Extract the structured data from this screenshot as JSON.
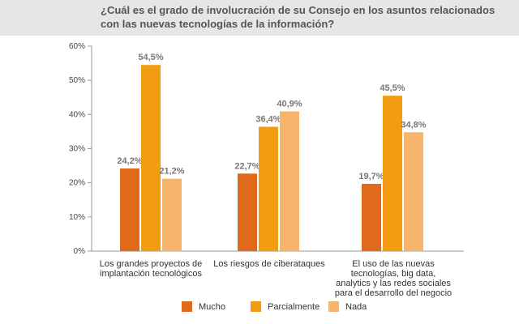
{
  "chart_data": {
    "type": "bar",
    "title": "¿Cuál es el grado de involucración de su Consejo en los asuntos relacionados con las nuevas tecnologías de la información?",
    "categories": [
      "Los grandes proyectos de implantación tecnológicos",
      "Los riesgos de ciberataques",
      "El uso de las nuevas tecnologías, big data, analytics y las redes sociales para el desarrollo del negocio"
    ],
    "series": [
      {
        "name": "Mucho",
        "values": [
          24.2,
          22.7,
          19.7
        ],
        "labels": [
          "24,2%",
          "22,7%",
          "19,7%"
        ],
        "color": "#e06a1b"
      },
      {
        "name": "Parcialmente",
        "values": [
          54.5,
          36.4,
          45.5
        ],
        "labels": [
          "54,5%",
          "36,4%",
          "45,5%"
        ],
        "color": "#f39c12"
      },
      {
        "name": "Nada",
        "values": [
          21.2,
          40.9,
          34.8
        ],
        "labels": [
          "21,2%",
          "40,9%",
          "34,8%"
        ],
        "color": "#f6b56b"
      }
    ],
    "yticks": [
      "0%",
      "10%",
      "20%",
      "30%",
      "40%",
      "50%",
      "60%"
    ],
    "ylim": [
      0,
      60
    ],
    "xlabel": "",
    "ylabel": "",
    "grid": false,
    "legend": "bottom-center",
    "label_color": "#777777"
  }
}
